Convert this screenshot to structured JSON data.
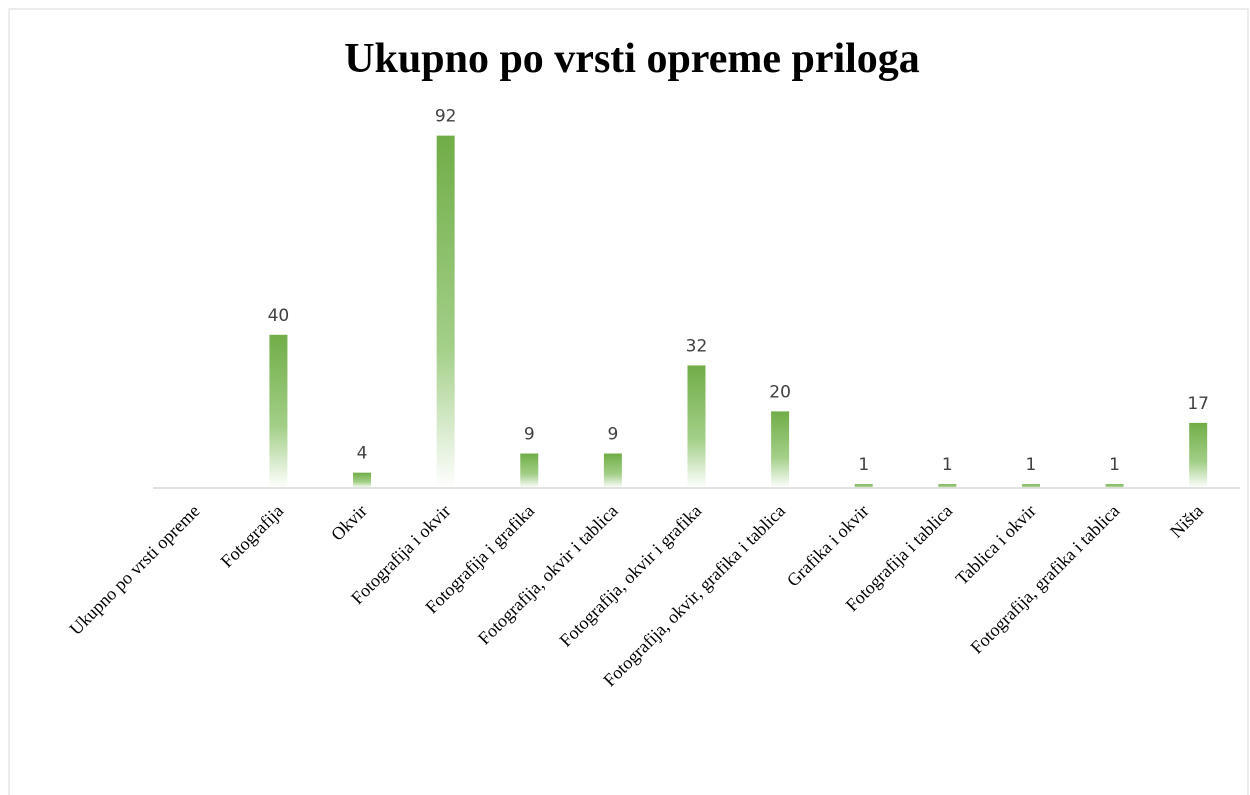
{
  "chart_data": {
    "type": "bar",
    "title": "Ukupno po vrsti opreme priloga",
    "categories": [
      "Ukupno po vrsti opreme",
      "Fotografija",
      "Okvir",
      "Fotografija i okvir",
      "Fotografija i grafika",
      "Fotografija, okvir i tablica",
      "Fotografija, okvir i grafika",
      "Fotografija, okvir, grafika i tablica",
      "Grafika i okvir",
      "Fotografija i tablica",
      "Tablica i okvir",
      "Fotografija, grafika i tablica",
      "Ništa"
    ],
    "values": [
      null,
      40,
      4,
      92,
      9,
      9,
      32,
      20,
      1,
      1,
      1,
      1,
      17
    ],
    "color": "#70ad47",
    "ylim": [
      0,
      100
    ]
  }
}
